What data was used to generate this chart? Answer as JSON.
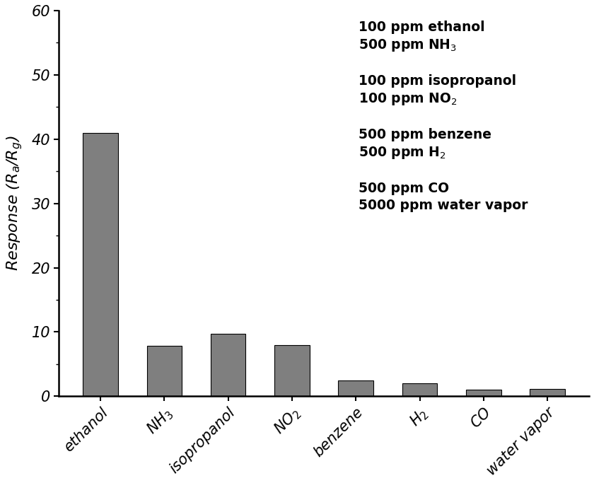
{
  "x_labels": [
    "ethanol",
    "NH$_3$",
    "isopropanol",
    "NO$_2$",
    "benzene",
    "H$_2$",
    "CO",
    "water vapor"
  ],
  "values": [
    41.0,
    7.9,
    9.7,
    8.0,
    2.5,
    2.0,
    1.0,
    1.1
  ],
  "bar_color": "#7f7f7f",
  "ylabel": "Response (R$_a$/R$_g$)",
  "ylim": [
    0,
    60
  ],
  "yticks": [
    0,
    10,
    20,
    30,
    40,
    50,
    60
  ],
  "annotation_text": "100 ppm ethanol\n500 ppm NH$_3$\n\n100 ppm isopropanol\n100 ppm NO$_2$\n\n500 ppm benzene\n500 ppm H$_2$\n\n500 ppm CO\n5000 ppm water vapor",
  "bg_color": "#ffffff",
  "bar_edge_color": "#000000",
  "tick_fontsize": 15,
  "label_fontsize": 16,
  "annot_fontsize": 13.5
}
